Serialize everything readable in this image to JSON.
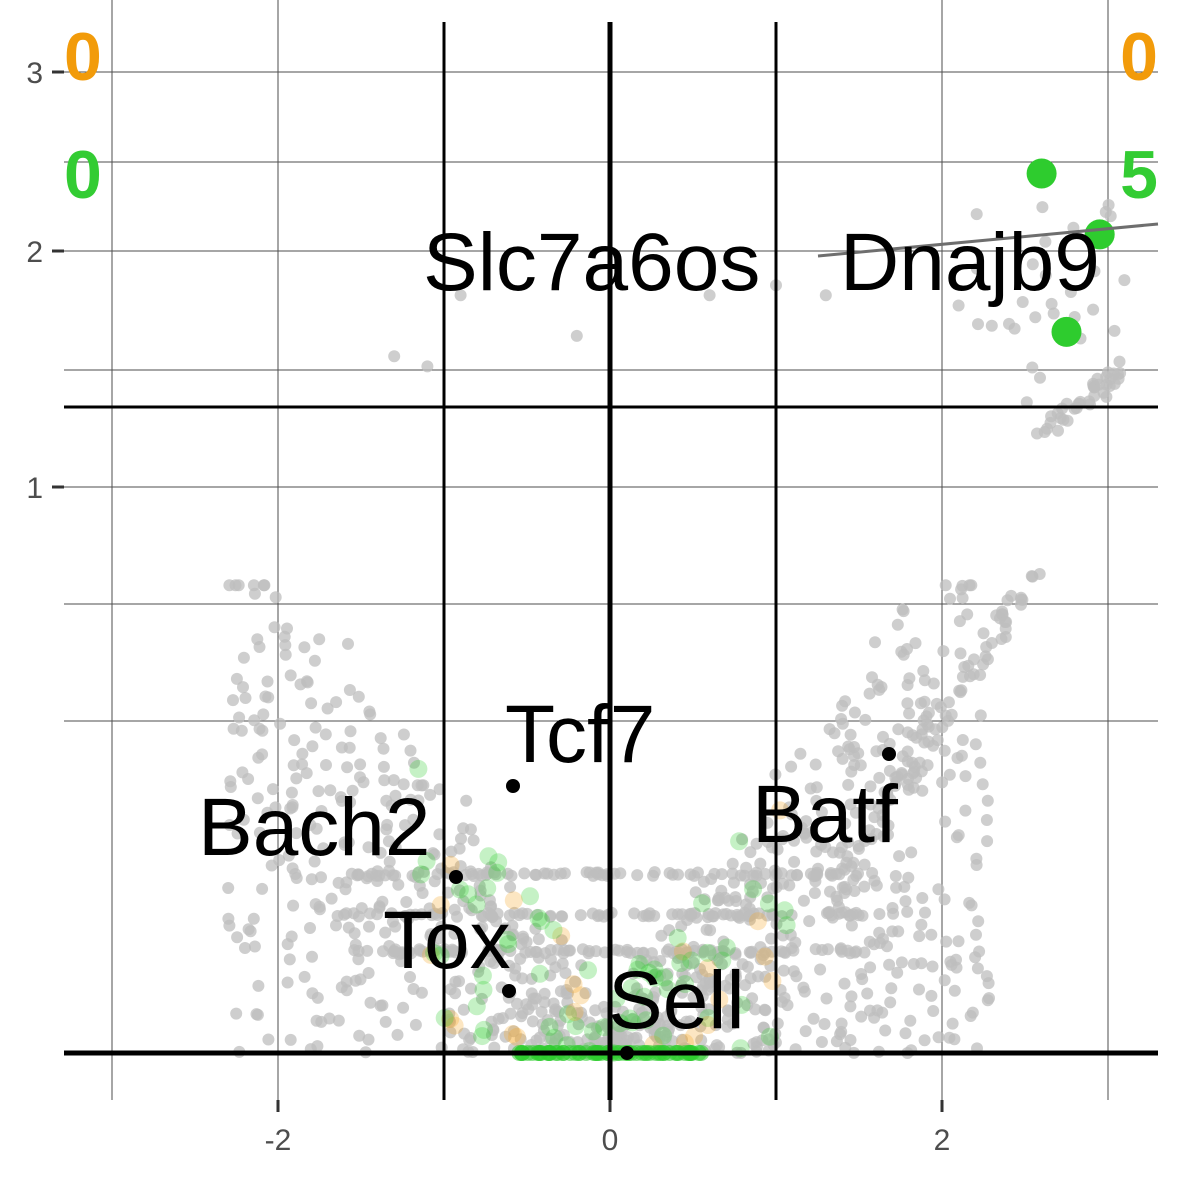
{
  "chart_data": {
    "type": "scatter",
    "title": "",
    "xlabel": "",
    "ylabel": "",
    "xlim": [
      -3.3,
      3.3
    ],
    "y_axis": {
      "note": "piecewise scale: upper segment and lower segment separated by horizontal rule",
      "tick_labels": [
        "1",
        "2",
        "3"
      ],
      "lower_segment": [
        0,
        1.2
      ],
      "upper_segment": [
        1.35,
        3.3
      ]
    },
    "x_ticks": [
      -2,
      0,
      2
    ],
    "x_tick_labels": [
      "-2",
      "0",
      "2"
    ],
    "y_ticks": [
      1,
      2,
      3
    ],
    "thresholds": {
      "x": [
        -1,
        0,
        1
      ],
      "y_baseline": 0,
      "y_cut": 1.35
    },
    "grid": true,
    "colors": {
      "background_points": "#bdbdbd",
      "significant_points": "#2ecc2e",
      "orange_points": "#f5a623",
      "label_points": "#000000",
      "count_orange": "#f29b0a",
      "count_green": "#33cc33"
    },
    "counts": {
      "top_left_orange": "0",
      "top_right_orange": "0",
      "mid_left_green": "0",
      "mid_right_green": "5"
    },
    "highlighted_points": [
      {
        "x": 2.6,
        "y": 2.5,
        "color": "green"
      },
      {
        "x": 2.95,
        "y": 2.2,
        "color": "green"
      },
      {
        "x": 2.75,
        "y": 1.72,
        "color": "green"
      }
    ],
    "labeled_genes": [
      {
        "name": "Tcf7",
        "x": -0.6,
        "y": 0.41
      },
      {
        "name": "Bach2",
        "x": -0.92,
        "y": 0.25
      },
      {
        "name": "Tox",
        "x": -0.6,
        "y": 0.09
      },
      {
        "name": "Sell",
        "x": 0.1,
        "y": 0.0
      },
      {
        "name": "Batf",
        "x": 1.7,
        "y": 0.46
      },
      {
        "name": "Slc7a6os",
        "x": 1.05,
        "y": 2.05
      },
      {
        "name": "Dnajb9",
        "x": 2.9,
        "y": 2.1
      }
    ]
  }
}
